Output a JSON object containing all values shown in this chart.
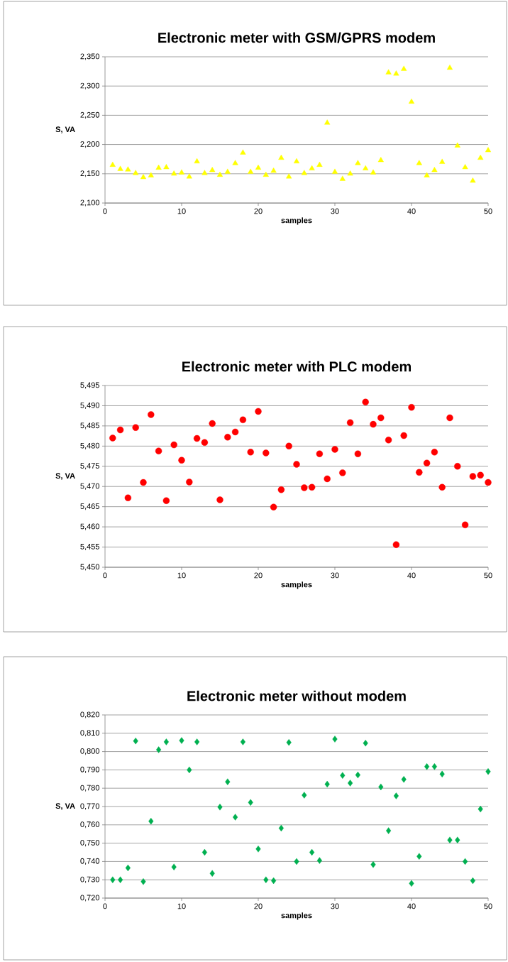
{
  "chart_data": [
    {
      "type": "scatter",
      "title": "Electronic meter with GSM/GPRS modem",
      "xlabel": "samples",
      "ylabel": "S, VA",
      "marker": "triangle",
      "grid": "y",
      "xlim": [
        0,
        50
      ],
      "xticks": [
        0,
        10,
        20,
        30,
        40,
        50
      ],
      "ylim": [
        2.1,
        2.35
      ],
      "yticks": [
        {
          "value": 2.1,
          "label": "2,100"
        },
        {
          "value": 2.15,
          "label": "2,150"
        },
        {
          "value": 2.2,
          "label": "2,200"
        },
        {
          "value": 2.25,
          "label": "2,250"
        },
        {
          "value": 2.3,
          "label": "2,300"
        },
        {
          "value": 2.35,
          "label": "2,350"
        }
      ],
      "x": [
        1,
        2,
        3,
        4,
        5,
        6,
        7,
        8,
        9,
        10,
        11,
        12,
        13,
        14,
        15,
        16,
        17,
        18,
        19,
        20,
        21,
        22,
        23,
        24,
        25,
        26,
        27,
        28,
        29,
        30,
        31,
        32,
        33,
        34,
        35,
        36,
        37,
        38,
        39,
        40,
        41,
        42,
        43,
        44,
        45,
        46,
        47,
        48,
        49,
        50
      ],
      "series": [
        {
          "color": "#ffff00",
          "values": [
            2.165,
            2.158,
            2.157,
            2.151,
            2.144,
            2.147,
            2.16,
            2.161,
            2.15,
            2.152,
            2.145,
            2.171,
            2.151,
            2.156,
            2.148,
            2.153,
            2.168,
            2.186,
            2.153,
            2.16,
            2.148,
            2.155,
            2.177,
            2.145,
            2.171,
            2.151,
            2.159,
            2.165,
            2.237,
            2.153,
            2.141,
            2.15,
            2.168,
            2.159,
            2.152,
            2.173,
            2.323,
            2.321,
            2.329,
            2.273,
            2.168,
            2.147,
            2.156,
            2.17,
            2.331,
            2.198,
            2.161,
            2.138,
            2.177,
            2.19
          ]
        }
      ]
    },
    {
      "type": "scatter",
      "title": "Electronic meter with PLC modem",
      "xlabel": "samples",
      "ylabel": "S, VA",
      "marker": "circle",
      "grid": "y",
      "xlim": [
        0,
        50
      ],
      "xticks": [
        0,
        10,
        20,
        30,
        40,
        50
      ],
      "ylim": [
        5.45,
        5.495
      ],
      "yticks": [
        {
          "value": 5.45,
          "label": "5,450"
        },
        {
          "value": 5.455,
          "label": "5,455"
        },
        {
          "value": 5.46,
          "label": "5,460"
        },
        {
          "value": 5.465,
          "label": "5,465"
        },
        {
          "value": 5.47,
          "label": "5,470"
        },
        {
          "value": 5.475,
          "label": "5,475"
        },
        {
          "value": 5.48,
          "label": "5,480"
        },
        {
          "value": 5.485,
          "label": "5,485"
        },
        {
          "value": 5.49,
          "label": "5,490"
        },
        {
          "value": 5.495,
          "label": "5,495"
        }
      ],
      "x": [
        1,
        2,
        3,
        4,
        5,
        6,
        7,
        8,
        9,
        10,
        11,
        12,
        13,
        14,
        15,
        16,
        17,
        18,
        19,
        20,
        21,
        22,
        23,
        24,
        25,
        26,
        27,
        28,
        29,
        30,
        31,
        32,
        33,
        34,
        35,
        36,
        37,
        38,
        39,
        40,
        41,
        42,
        43,
        44,
        45,
        46,
        47,
        48,
        49,
        50
      ],
      "series": [
        {
          "color": "#ff0000",
          "values": [
            5.482,
            5.484,
            5.4672,
            5.4846,
            5.471,
            5.4878,
            5.4788,
            5.4665,
            5.4803,
            5.4765,
            5.4711,
            5.4819,
            5.4809,
            5.4856,
            5.4667,
            5.4822,
            5.4835,
            5.4865,
            5.4785,
            5.4886,
            5.4783,
            5.4649,
            5.4692,
            5.48,
            5.4755,
            5.4697,
            5.4698,
            5.4781,
            5.4719,
            5.4792,
            5.4734,
            5.4858,
            5.4781,
            5.4909,
            5.4854,
            5.487,
            5.4815,
            5.4556,
            5.4826,
            5.4896,
            5.4735,
            5.4758,
            5.4785,
            5.4698,
            5.487,
            5.475,
            5.4605,
            5.4725,
            5.4728,
            5.471
          ]
        }
      ]
    },
    {
      "type": "scatter",
      "title": "Electronic meter without modem",
      "xlabel": "samples",
      "ylabel": "S, VA",
      "marker": "diamond",
      "grid": "y",
      "xlim": [
        0,
        50
      ],
      "xticks": [
        0,
        10,
        20,
        30,
        40,
        50
      ],
      "ylim": [
        0.72,
        0.82
      ],
      "yticks": [
        {
          "value": 0.72,
          "label": "0,720"
        },
        {
          "value": 0.73,
          "label": "0,730"
        },
        {
          "value": 0.74,
          "label": "0,740"
        },
        {
          "value": 0.75,
          "label": "0,750"
        },
        {
          "value": 0.76,
          "label": "0,760"
        },
        {
          "value": 0.77,
          "label": "0,770"
        },
        {
          "value": 0.78,
          "label": "0,780"
        },
        {
          "value": 0.79,
          "label": "0,790"
        },
        {
          "value": 0.8,
          "label": "0,800"
        },
        {
          "value": 0.81,
          "label": "0,810"
        },
        {
          "value": 0.82,
          "label": "0,820"
        }
      ],
      "x": [
        1,
        2,
        3,
        4,
        5,
        6,
        7,
        8,
        9,
        10,
        11,
        12,
        13,
        14,
        15,
        16,
        17,
        18,
        19,
        20,
        21,
        22,
        23,
        24,
        25,
        26,
        27,
        28,
        29,
        30,
        31,
        32,
        33,
        34,
        35,
        36,
        37,
        38,
        39,
        40,
        41,
        42,
        43,
        44,
        45,
        46,
        47,
        48,
        49,
        50
      ],
      "series": [
        {
          "color": "#00b050",
          "values": [
            0.73,
            0.73,
            0.7365,
            0.8058,
            0.729,
            0.762,
            0.801,
            0.8053,
            0.737,
            0.806,
            0.79,
            0.8053,
            0.745,
            0.7335,
            0.7697,
            0.7835,
            0.7642,
            0.8053,
            0.7722,
            0.7468,
            0.73,
            0.7295,
            0.7582,
            0.805,
            0.74,
            0.7762,
            0.745,
            0.7405,
            0.7822,
            0.8068,
            0.787,
            0.7828,
            0.7872,
            0.8046,
            0.7383,
            0.7807,
            0.7568,
            0.7758,
            0.7848,
            0.728,
            0.7428,
            0.7918,
            0.7918,
            0.7877,
            0.7517,
            0.7517,
            0.74,
            0.7295,
            0.7686,
            0.7891
          ]
        }
      ]
    }
  ]
}
